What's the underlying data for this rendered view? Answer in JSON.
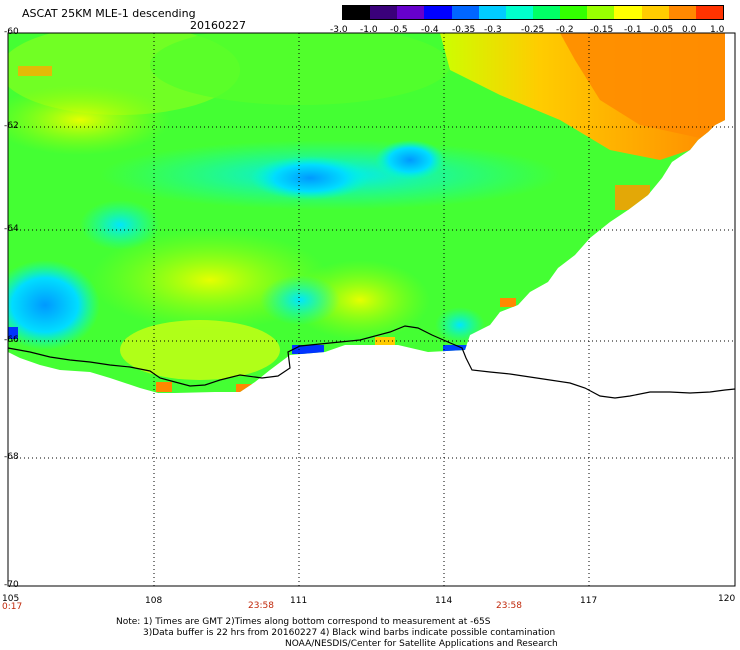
{
  "header": {
    "title": "ASCAT 25KM MLE-1 descending",
    "date": "20160227"
  },
  "colorbar": {
    "labels": [
      "-3.0",
      "-1.0",
      "-0.5",
      "-0.4",
      "-0.35",
      "-0.3",
      "-0.25",
      "-0.2",
      "-0.15",
      "-0.1",
      "-0.05",
      "0.0",
      "1.0"
    ],
    "colors": [
      "#000000",
      "#3a007a",
      "#6600cc",
      "#0000ff",
      "#0066ff",
      "#00ccff",
      "#00ffcc",
      "#00ff66",
      "#33ff00",
      "#99ff00",
      "#ffff00",
      "#ffcc00",
      "#ff8800",
      "#ff3300"
    ]
  },
  "map": {
    "lat_labels": [
      "-60",
      "-62",
      "-64",
      "-66",
      "-68",
      "-70"
    ],
    "lon_labels": [
      "105",
      "108",
      "111",
      "114",
      "117",
      "120"
    ],
    "time_labels": [
      "0:17",
      "23:58",
      "23:58"
    ]
  },
  "notes": {
    "line1": "Note: 1) Times are GMT 2)Times along bottom correspond to measurement at -65S",
    "line2": "3)Data buffer is 22 hrs from 20160227 4) Black wind barbs indicate possible contamination",
    "line3": "NOAA/NESDIS/Center for Satellite Applications and Research"
  }
}
